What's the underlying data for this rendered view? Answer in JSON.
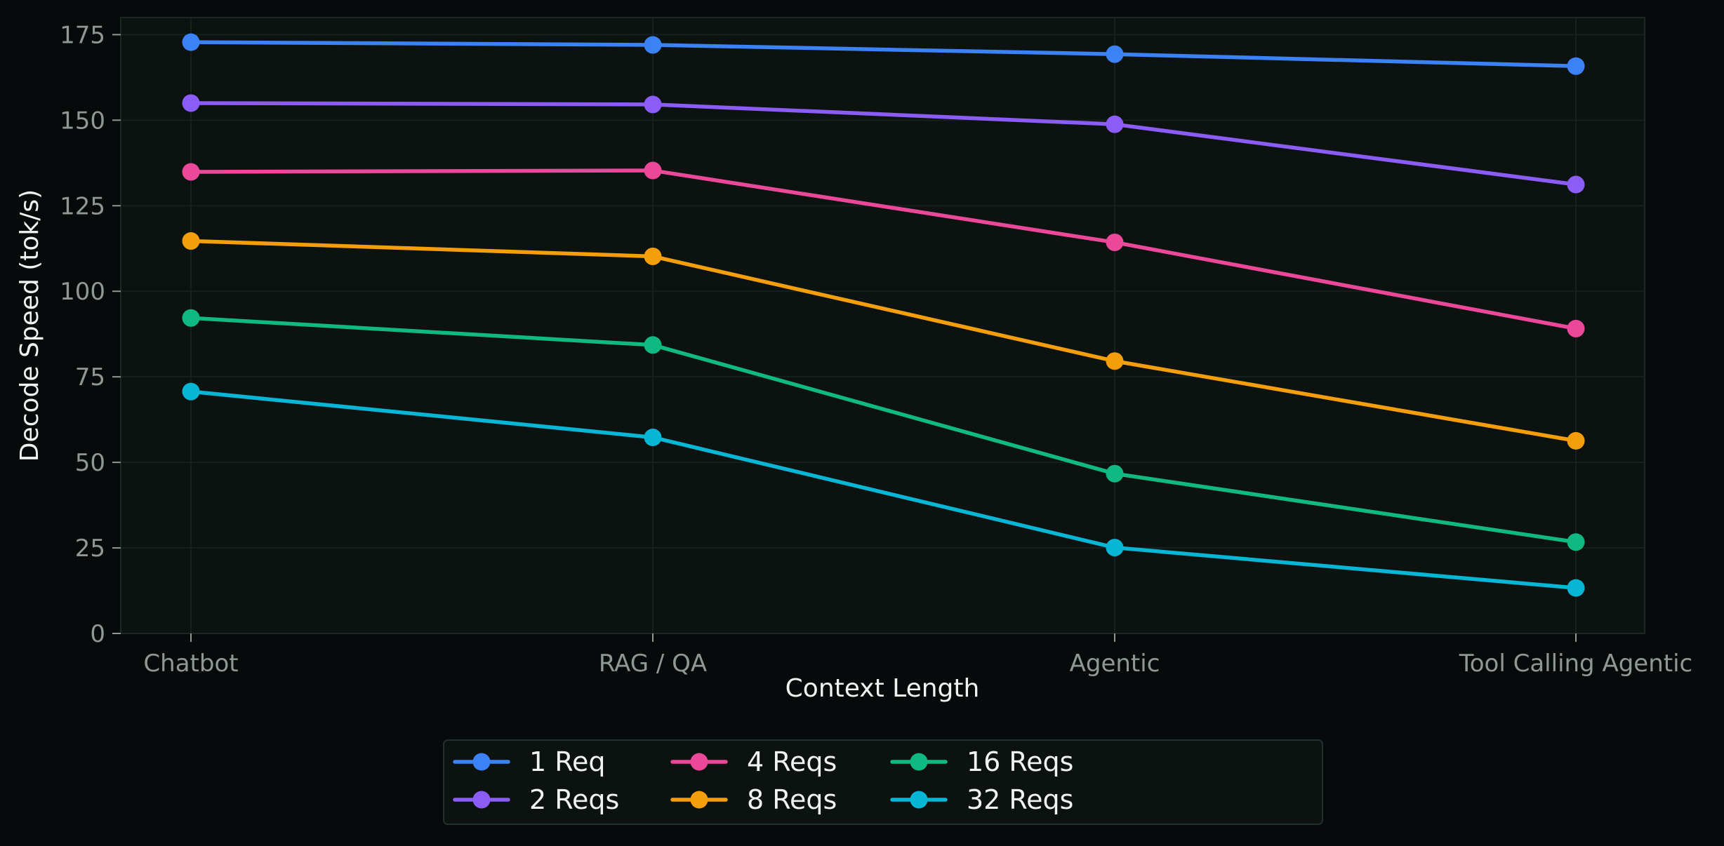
{
  "chart_data": {
    "type": "line",
    "title": "",
    "xlabel": "Context Length",
    "ylabel": "Decode Speed (tok/s)",
    "categories": [
      "Chatbot",
      "RAG / QA",
      "Agentic",
      "Tool Calling Agentic"
    ],
    "ylim": [
      0,
      180
    ],
    "yticks": [
      0,
      25,
      50,
      75,
      100,
      125,
      150,
      175
    ],
    "grid": true,
    "legend_position": "bottom-center",
    "series": [
      {
        "name": "1 Req",
        "color": "#3b82f6",
        "values": [
          172.8,
          172.0,
          169.3,
          165.8
        ]
      },
      {
        "name": "2 Reqs",
        "color": "#8b5cf6",
        "values": [
          155.0,
          154.6,
          148.8,
          131.2
        ]
      },
      {
        "name": "4 Reqs",
        "color": "#ec4899",
        "values": [
          134.9,
          135.3,
          114.3,
          89.1
        ]
      },
      {
        "name": "8 Reqs",
        "color": "#f59e0b",
        "values": [
          114.7,
          110.2,
          79.6,
          56.3
        ]
      },
      {
        "name": "16 Reqs",
        "color": "#10b981",
        "values": [
          92.2,
          84.3,
          46.7,
          26.7
        ]
      },
      {
        "name": "32 Reqs",
        "color": "#06b6d4",
        "values": [
          70.7,
          57.3,
          25.1,
          13.3
        ]
      }
    ]
  }
}
